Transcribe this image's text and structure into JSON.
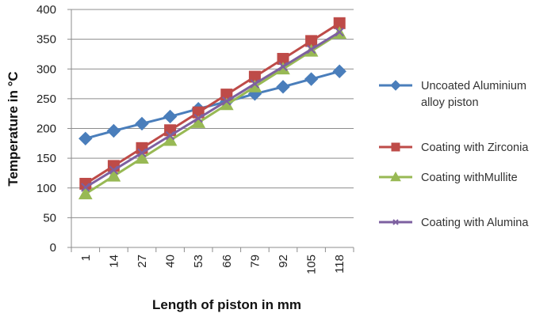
{
  "chart_data": {
    "type": "line",
    "title": "",
    "xlabel": "Length of piston in mm",
    "ylabel": "Temperature in °C",
    "ylim": [
      0,
      400
    ],
    "yticks": [
      "0",
      "50",
      "100",
      "150",
      "200",
      "250",
      "300",
      "350",
      "400"
    ],
    "grid": "horizontal",
    "legend_position": "right",
    "categories": [
      "1",
      "14",
      "27",
      "40",
      "53",
      "66",
      "79",
      "92",
      "105",
      "118"
    ],
    "series": [
      {
        "name": "Uncoated Aluminium alloy piston",
        "legend_lines": [
          "Uncoated Aluminium",
          "alloy piston"
        ],
        "color": "#4a7ebb",
        "marker": "diamond",
        "values": [
          183,
          196,
          208,
          220,
          233,
          245,
          258,
          270,
          283,
          296
        ]
      },
      {
        "name": "Coating with Zirconia",
        "legend_lines": [
          "Coating with Zirconia"
        ],
        "color": "#be4b48",
        "marker": "square",
        "values": [
          107,
          137,
          167,
          197,
          227,
          257,
          287,
          317,
          347,
          377
        ]
      },
      {
        "name": "Coating withMullite",
        "legend_lines": [
          "Coating withMullite"
        ],
        "color": "#98b954",
        "marker": "triangle",
        "values": [
          90,
          120,
          150,
          180,
          210,
          240,
          270,
          300,
          330,
          360
        ]
      },
      {
        "name": "Coating with Alumina",
        "legend_lines": [
          "Coating with Alumina"
        ],
        "color": "#7d60a0",
        "marker": "x",
        "values": [
          101,
          130,
          159,
          188,
          217,
          246,
          275,
          304,
          333,
          362
        ]
      }
    ]
  }
}
